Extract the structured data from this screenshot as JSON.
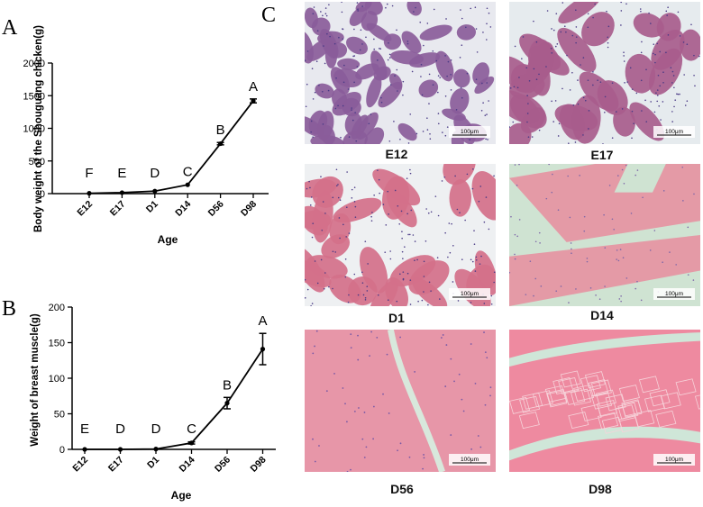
{
  "panels": {
    "a": "A",
    "b": "B",
    "c": "C"
  },
  "chart_data": [
    {
      "type": "line",
      "categories": [
        "E12",
        "E17",
        "D1",
        "D14",
        "D56",
        "D98"
      ],
      "values": [
        5,
        15,
        38,
        135,
        765,
        1420
      ],
      "errors": [
        2,
        4,
        6,
        12,
        18,
        30
      ],
      "significance": [
        "F",
        "E",
        "D",
        "C",
        "B",
        "A"
      ],
      "xlabel": "Age",
      "ylabel": "Body weight of the Shouguang chicken(g)",
      "ylim": [
        0,
        2000
      ],
      "yticks": [
        0,
        500,
        1000,
        1500,
        2000
      ],
      "grid": false
    },
    {
      "type": "line",
      "categories": [
        "E12",
        "E17",
        "D1",
        "D14",
        "D56",
        "D98"
      ],
      "values": [
        0,
        0,
        0.5,
        9,
        65,
        141
      ],
      "errors": [
        0.1,
        0.2,
        0.3,
        1.5,
        8,
        22
      ],
      "significance": [
        "E",
        "D",
        "D",
        "C",
        "B",
        "A"
      ],
      "xlabel": "Age",
      "ylabel": "Weight of breast muscle(g)",
      "ylim": [
        0,
        200
      ],
      "yticks": [
        0,
        50,
        100,
        150,
        200
      ],
      "grid": false
    }
  ],
  "micrographs": [
    {
      "label": "E12",
      "scalebar": "100μm",
      "style": "dense",
      "bg": "#e8e9ef",
      "tissue": "#8a5c9a"
    },
    {
      "label": "E17",
      "scalebar": "100μm",
      "style": "bundles",
      "bg": "#e6ebee",
      "tissue": "#a85c8c"
    },
    {
      "label": "D1",
      "scalebar": "100μm",
      "style": "bundles",
      "bg": "#eef0f2",
      "tissue": "#d4708a"
    },
    {
      "label": "D14",
      "scalebar": "100μm",
      "style": "large",
      "bg": "#cfe3d2",
      "tissue": "#e49aa6"
    },
    {
      "label": "D56",
      "scalebar": "100μm",
      "style": "solid",
      "bg": "#d8e8dc",
      "tissue": "#e796a8"
    },
    {
      "label": "D98",
      "scalebar": "100μm",
      "style": "fibers",
      "bg": "#cfe6d8",
      "tissue": "#ee8aa0"
    }
  ]
}
